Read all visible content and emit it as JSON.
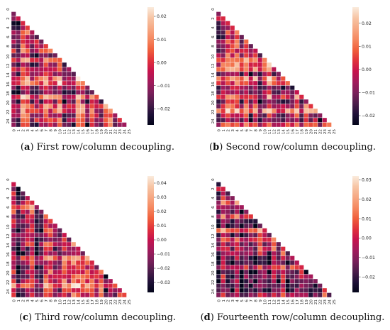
{
  "palette": [
    "#03051a",
    "#1f1138",
    "#4c1d4b",
    "#7a1f5a",
    "#a11a5b",
    "#c6134d",
    "#e0313c",
    "#f05f3c",
    "#f58860",
    "#f6a883",
    "#f7c5a5",
    "#faebdd"
  ],
  "panels": [
    {
      "caption_letter": "a",
      "caption_text": "First row/column decoupling.",
      "chart_data": {
        "type": "heatmap",
        "mask": "upper-triangle",
        "size": 26,
        "y_tick_labels": [
          "0",
          "2",
          "4",
          "6",
          "8",
          "10",
          "12",
          "14",
          "16",
          "18",
          "20",
          "22",
          "24"
        ],
        "x_tick_labels": [
          "0",
          "1",
          "2",
          "3",
          "4",
          "5",
          "6",
          "7",
          "8",
          "9",
          "10",
          "11",
          "12",
          "13",
          "14",
          "15",
          "16",
          "17",
          "18",
          "19",
          "20",
          "21",
          "22",
          "23",
          "24",
          "25"
        ],
        "colorbar_ticks": [
          "0.02",
          "0.01",
          "0.00",
          "−0.01",
          "−0.02"
        ],
        "colorbar_tick_values": [
          0.02,
          0.01,
          0.0,
          -0.01,
          -0.02
        ],
        "vmin": -0.027,
        "vmax": 0.024,
        "seed": 11
      }
    },
    {
      "caption_letter": "b",
      "caption_text": "Second row/column decoupling.",
      "chart_data": {
        "type": "heatmap",
        "mask": "upper-triangle",
        "size": 26,
        "y_tick_labels": [
          "0",
          "2",
          "4",
          "6",
          "8",
          "10",
          "12",
          "14",
          "16",
          "18",
          "20",
          "22",
          "24"
        ],
        "x_tick_labels": [
          "0",
          "1",
          "2",
          "3",
          "4",
          "5",
          "6",
          "7",
          "8",
          "9",
          "10",
          "11",
          "12",
          "13",
          "14",
          "15",
          "16",
          "17",
          "18",
          "19",
          "20",
          "21",
          "22",
          "23",
          "24",
          "25"
        ],
        "colorbar_ticks": [
          "0.02",
          "0.01",
          "0.00",
          "−0.01",
          "−0.02"
        ],
        "colorbar_tick_values": [
          0.02,
          0.01,
          0.0,
          -0.01,
          -0.02
        ],
        "vmin": -0.024,
        "vmax": 0.027,
        "seed": 23
      }
    },
    {
      "caption_letter": "c",
      "caption_text": "Third row/column decoupling.",
      "chart_data": {
        "type": "heatmap",
        "mask": "upper-triangle",
        "size": 26,
        "y_tick_labels": [
          "0",
          "2",
          "4",
          "6",
          "8",
          "10",
          "12",
          "14",
          "16",
          "18",
          "20",
          "22",
          "24"
        ],
        "x_tick_labels": [
          "0",
          "1",
          "2",
          "3",
          "4",
          "5",
          "6",
          "7",
          "8",
          "9",
          "10",
          "11",
          "12",
          "13",
          "14",
          "15",
          "16",
          "17",
          "18",
          "19",
          "20",
          "21",
          "22",
          "23",
          "24",
          "25"
        ],
        "colorbar_ticks": [
          "0.04",
          "0.03",
          "0.02",
          "0.01",
          "0.00",
          "−0.01",
          "−0.02",
          "−0.03"
        ],
        "colorbar_tick_values": [
          0.04,
          0.03,
          0.02,
          0.01,
          0.0,
          -0.01,
          -0.02,
          -0.03
        ],
        "vmin": -0.037,
        "vmax": 0.045,
        "seed": 37
      }
    },
    {
      "caption_letter": "d",
      "caption_text": "Fourteenth row/column decoupling.",
      "chart_data": {
        "type": "heatmap",
        "mask": "upper-triangle",
        "size": 26,
        "y_tick_labels": [
          "0",
          "2",
          "4",
          "6",
          "8",
          "10",
          "12",
          "14",
          "16",
          "18",
          "20",
          "22",
          "24"
        ],
        "x_tick_labels": [
          "0",
          "1",
          "2",
          "3",
          "4",
          "5",
          "6",
          "7",
          "8",
          "9",
          "10",
          "11",
          "12",
          "13",
          "14",
          "15",
          "16",
          "17",
          "18",
          "19",
          "20",
          "21",
          "22",
          "23",
          "24",
          "25"
        ],
        "colorbar_ticks": [
          "0.03",
          "0.02",
          "0.01",
          "0.00",
          "−0.01",
          "−0.02"
        ],
        "colorbar_tick_values": [
          0.03,
          0.02,
          0.01,
          0.0,
          -0.01,
          -0.02
        ],
        "vmin": -0.028,
        "vmax": 0.032,
        "seed": 53
      }
    }
  ]
}
